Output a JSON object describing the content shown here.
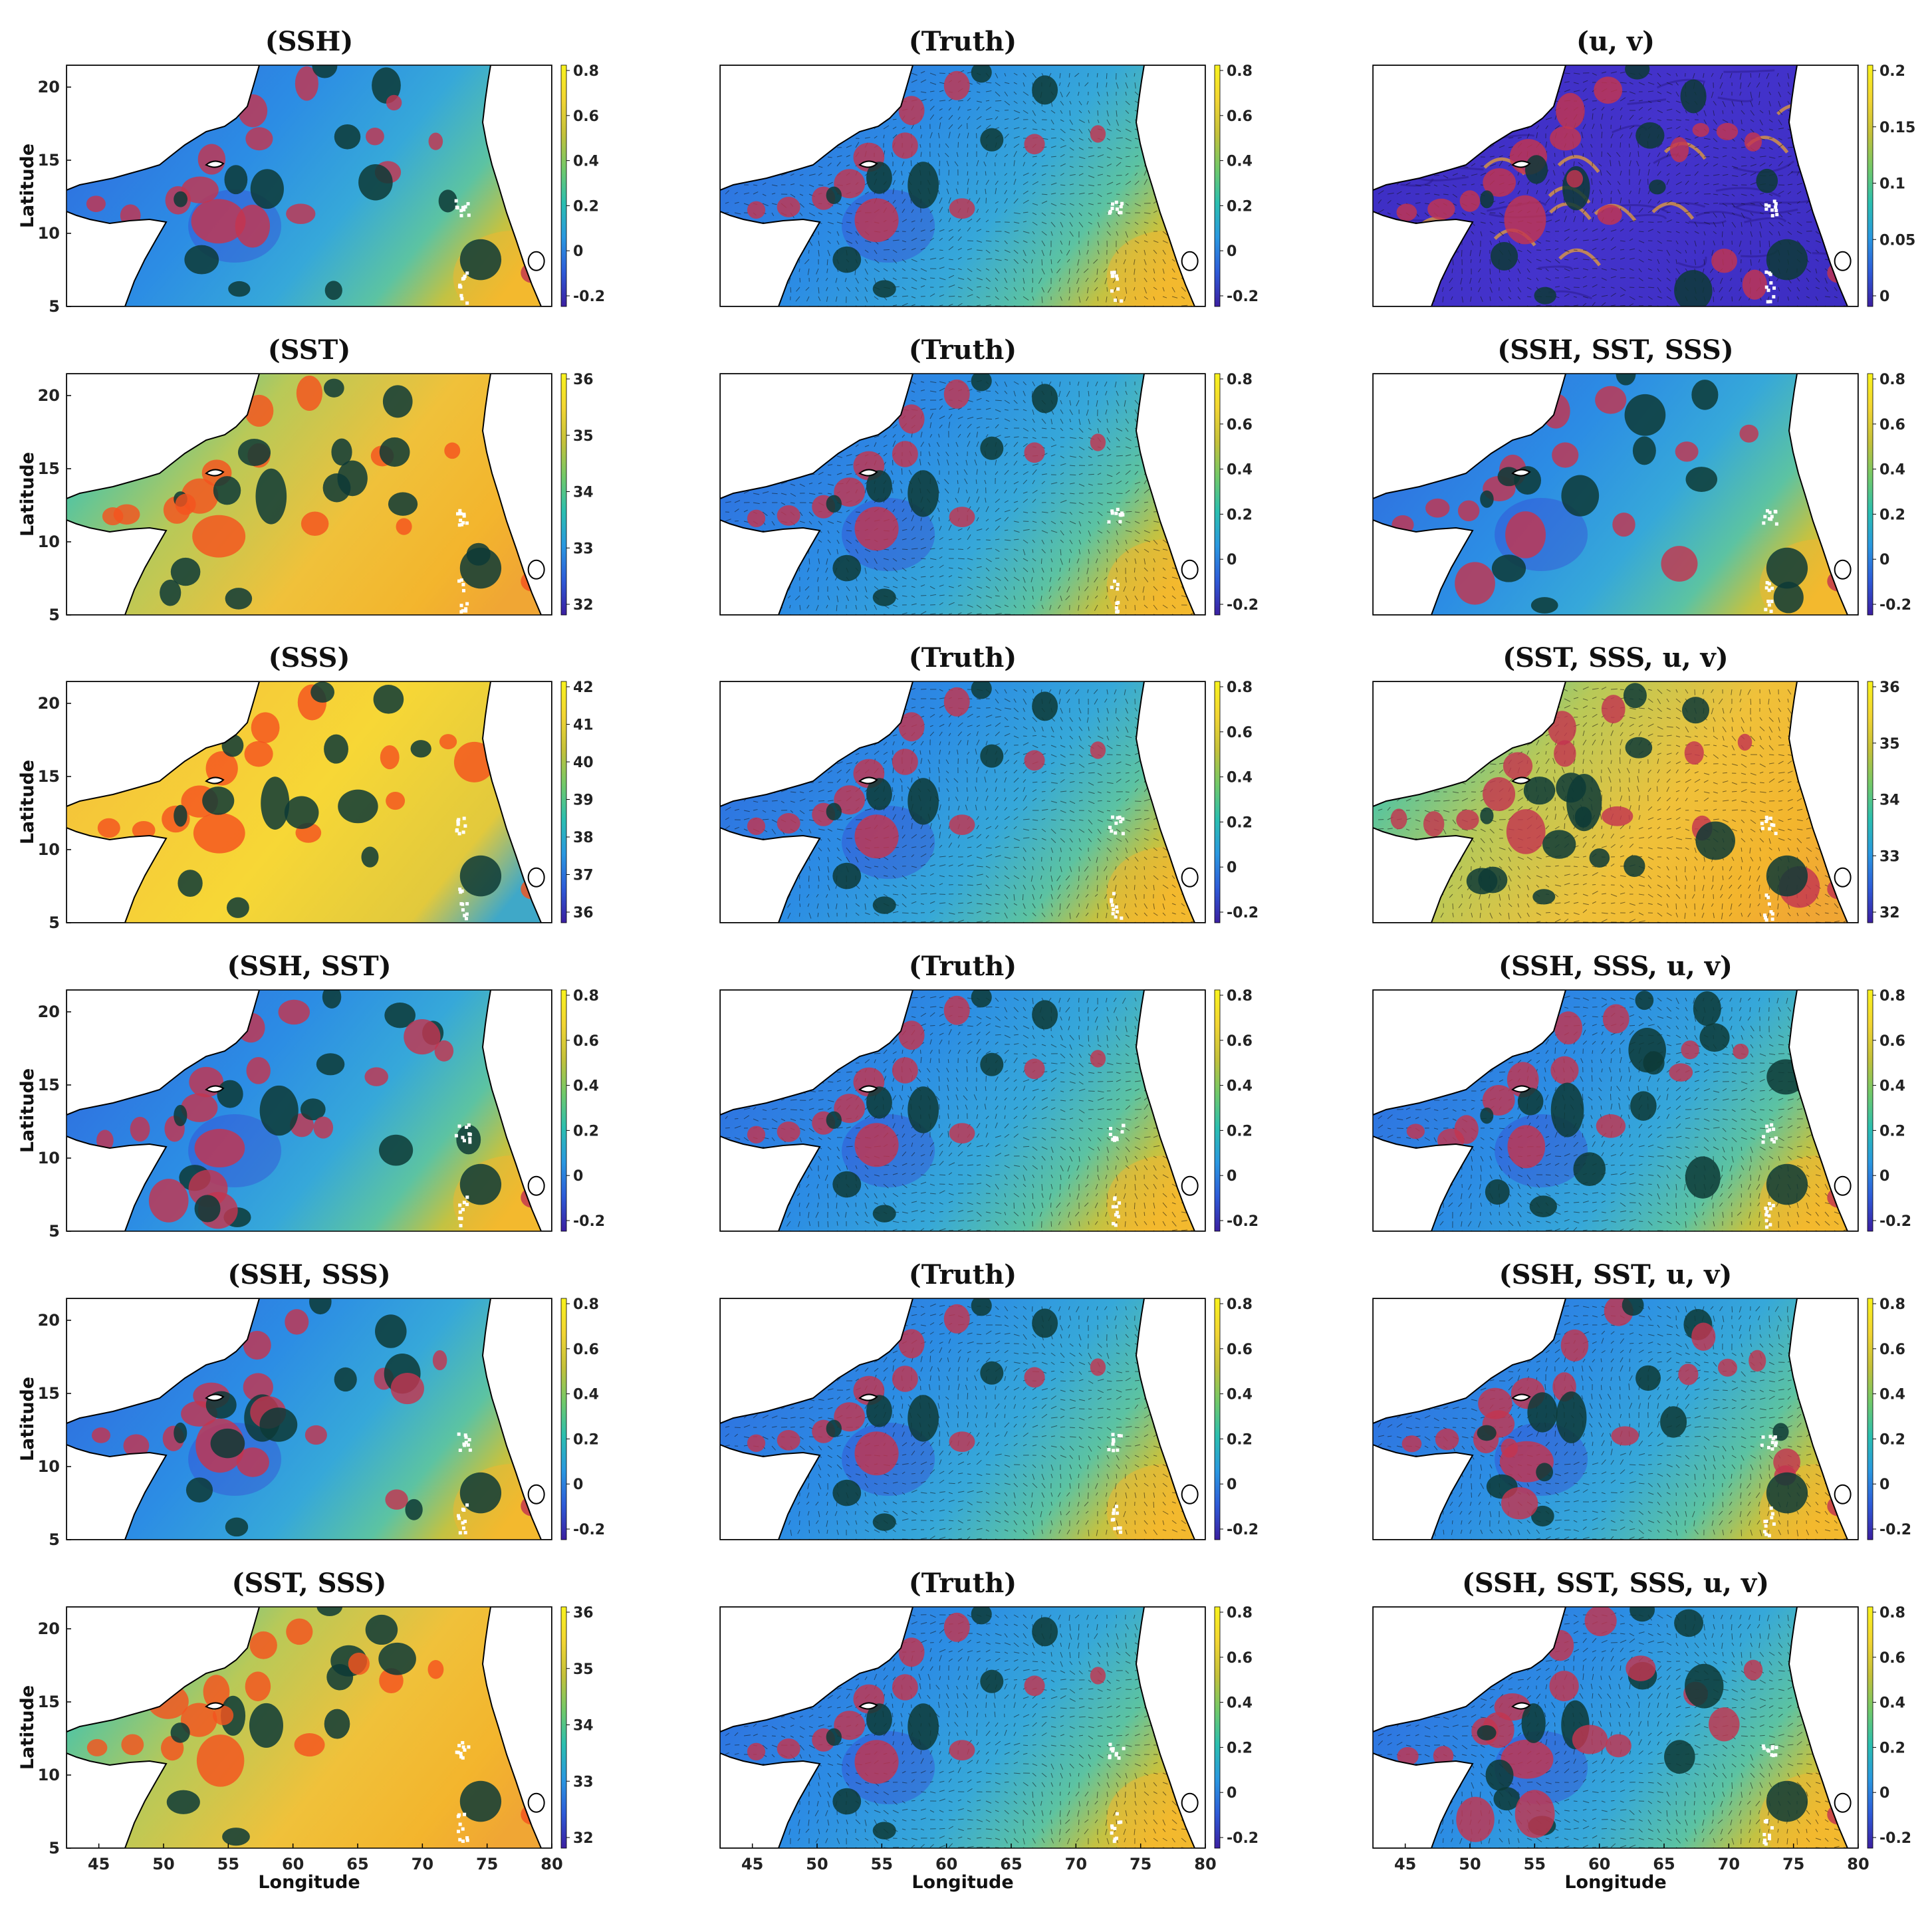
{
  "figure": {
    "axis_labels": {
      "x": "Longitude",
      "y": "Latitude"
    },
    "lon_ticks": [
      "45",
      "50",
      "55",
      "60",
      "65",
      "70",
      "75",
      "80"
    ],
    "lat_ticks": [
      "20",
      "15",
      "10",
      "5"
    ],
    "colorbar_palette": [
      "#3b1fa0",
      "#2e5bd8",
      "#2a98e0",
      "#2bbfb0",
      "#71c96a",
      "#c4c13a",
      "#f2d533",
      "#f8f21d"
    ],
    "panels": [
      {
        "title": "(SSH)",
        "field": "ssh",
        "vectors": false,
        "colorbar_ticks": [
          "0.8",
          "0.6",
          "0.4",
          "0.2",
          "0",
          "-0.2"
        ]
      },
      {
        "title": "(Truth)",
        "field": "ssh",
        "vectors": true,
        "colorbar_ticks": [
          "0.8",
          "0.6",
          "0.4",
          "0.2",
          "0",
          "-0.2"
        ]
      },
      {
        "title": "(u, v)",
        "field": "uv",
        "vectors": true,
        "colorbar_ticks": [
          "0.2",
          "0.15",
          "0.1",
          "0.05",
          "0"
        ]
      },
      {
        "title": "(SST)",
        "field": "sst",
        "vectors": false,
        "colorbar_ticks": [
          "36",
          "35",
          "34",
          "33",
          "32"
        ]
      },
      {
        "title": "(Truth)",
        "field": "ssh",
        "vectors": true,
        "colorbar_ticks": [
          "0.8",
          "0.6",
          "0.4",
          "0.2",
          "0",
          "-0.2"
        ]
      },
      {
        "title": "(SSH, SST, SSS)",
        "field": "ssh",
        "vectors": false,
        "colorbar_ticks": [
          "0.8",
          "0.6",
          "0.4",
          "0.2",
          "0",
          "-0.2"
        ]
      },
      {
        "title": "(SSS)",
        "field": "sss",
        "vectors": false,
        "colorbar_ticks": [
          "42",
          "41",
          "40",
          "39",
          "38",
          "37",
          "36"
        ]
      },
      {
        "title": "(Truth)",
        "field": "ssh",
        "vectors": true,
        "colorbar_ticks": [
          "0.8",
          "0.6",
          "0.4",
          "0.2",
          "0",
          "-0.2"
        ]
      },
      {
        "title": "(SST, SSS, u, v)",
        "field": "sst",
        "vectors": true,
        "colorbar_ticks": [
          "36",
          "35",
          "34",
          "33",
          "32"
        ]
      },
      {
        "title": "(SSH, SST)",
        "field": "ssh",
        "vectors": false,
        "colorbar_ticks": [
          "0.8",
          "0.6",
          "0.4",
          "0.2",
          "0",
          "-0.2"
        ]
      },
      {
        "title": "(Truth)",
        "field": "ssh",
        "vectors": true,
        "colorbar_ticks": [
          "0.8",
          "0.6",
          "0.4",
          "0.2",
          "0",
          "-0.2"
        ]
      },
      {
        "title": "(SSH, SSS, u, v)",
        "field": "ssh",
        "vectors": true,
        "colorbar_ticks": [
          "0.8",
          "0.6",
          "0.4",
          "0.2",
          "0",
          "-0.2"
        ]
      },
      {
        "title": "(SSH, SSS)",
        "field": "ssh",
        "vectors": false,
        "colorbar_ticks": [
          "0.8",
          "0.6",
          "0.4",
          "0.2",
          "0",
          "-0.2"
        ]
      },
      {
        "title": "(Truth)",
        "field": "ssh",
        "vectors": true,
        "colorbar_ticks": [
          "0.8",
          "0.6",
          "0.4",
          "0.2",
          "0",
          "-0.2"
        ]
      },
      {
        "title": "(SSH, SST, u, v)",
        "field": "ssh",
        "vectors": true,
        "colorbar_ticks": [
          "0.8",
          "0.6",
          "0.4",
          "0.2",
          "0",
          "-0.2"
        ]
      },
      {
        "title": "(SST, SSS)",
        "field": "sst",
        "vectors": false,
        "colorbar_ticks": [
          "36",
          "35",
          "34",
          "33",
          "32"
        ]
      },
      {
        "title": "(Truth)",
        "field": "ssh",
        "vectors": true,
        "colorbar_ticks": [
          "0.8",
          "0.6",
          "0.4",
          "0.2",
          "0",
          "-0.2"
        ]
      },
      {
        "title": "(SSH, SST, SSS, u, v)",
        "field": "ssh",
        "vectors": true,
        "colorbar_ticks": [
          "0.8",
          "0.6",
          "0.4",
          "0.2",
          "0",
          "-0.2"
        ]
      }
    ]
  }
}
